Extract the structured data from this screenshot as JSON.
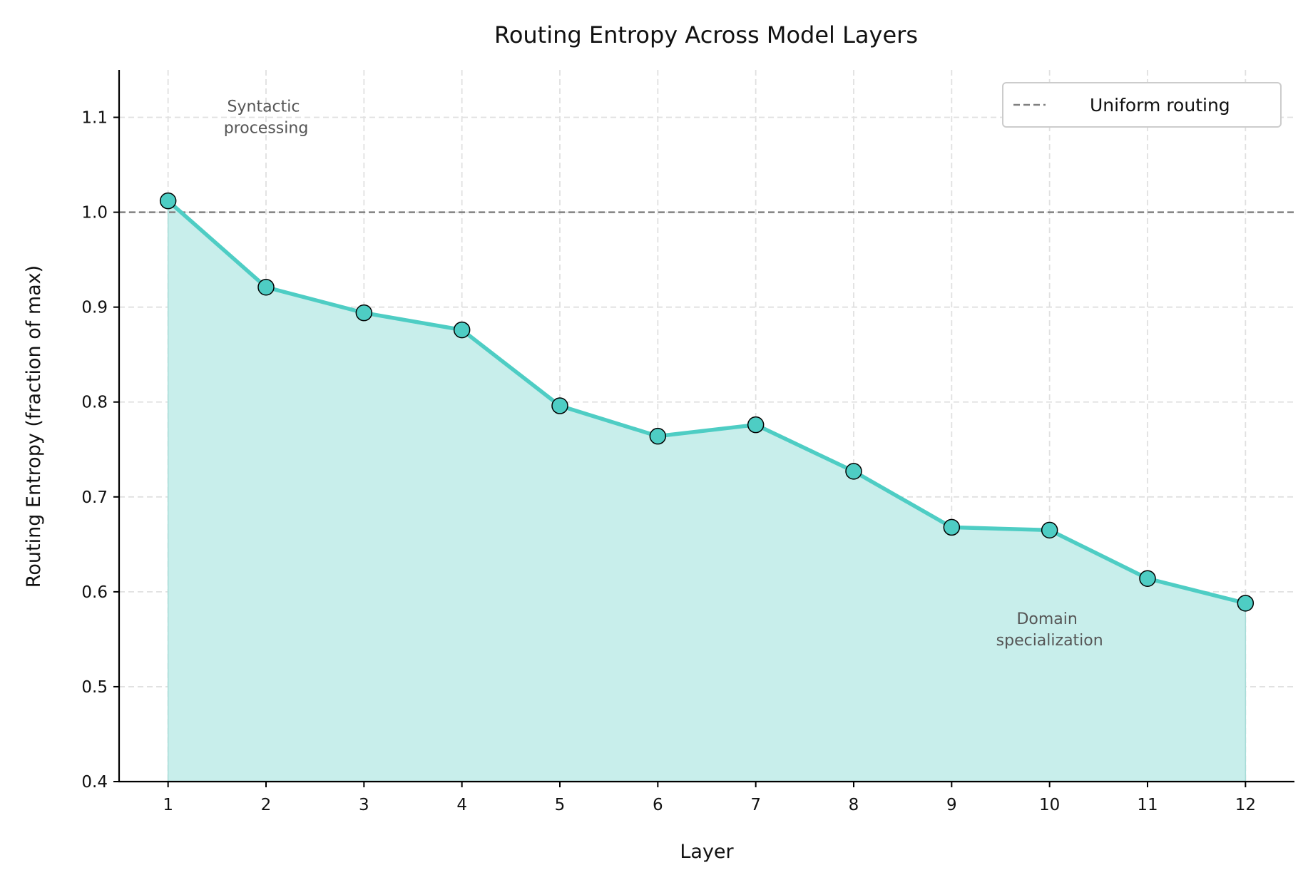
{
  "chart_data": {
    "type": "line",
    "title": "Routing Entropy Across Model Layers",
    "xlabel": "Layer",
    "ylabel": "Routing Entropy (fraction of max)",
    "x": [
      1,
      2,
      3,
      4,
      5,
      6,
      7,
      8,
      9,
      10,
      11,
      12
    ],
    "values": [
      1.012,
      0.921,
      0.894,
      0.876,
      0.796,
      0.764,
      0.776,
      0.727,
      0.668,
      0.665,
      0.614,
      0.588
    ],
    "xlim": [
      0.5,
      12.5
    ],
    "ylim": [
      0.4,
      1.15
    ],
    "yticks": [
      "0.4",
      "0.5",
      "0.6",
      "0.7",
      "0.8",
      "0.9",
      "1.0",
      "1.1"
    ],
    "xticks": [
      "1",
      "2",
      "3",
      "4",
      "5",
      "6",
      "7",
      "8",
      "9",
      "10",
      "11",
      "12"
    ],
    "grid": true,
    "fill_under_line": true,
    "reference_line": {
      "y": 1.0,
      "style": "dashed",
      "color": "#808080",
      "label": "Uniform routing"
    },
    "legend": {
      "position": "top-right",
      "entries": [
        "Uniform routing"
      ]
    },
    "annotations": [
      {
        "text": "Syntactic\nprocessing",
        "line1": "Syntactic",
        "line2": "processing",
        "x": 2,
        "y": 1.1
      },
      {
        "text": "Domain\nspecialization",
        "line1": "Domain",
        "line2": "specialization",
        "x": 10,
        "y": 0.56
      }
    ],
    "colors": {
      "line": "#4ecdc4",
      "fill": "#c8eeeb",
      "marker_edge": "#000000",
      "grid": "#e0e0e0"
    }
  }
}
